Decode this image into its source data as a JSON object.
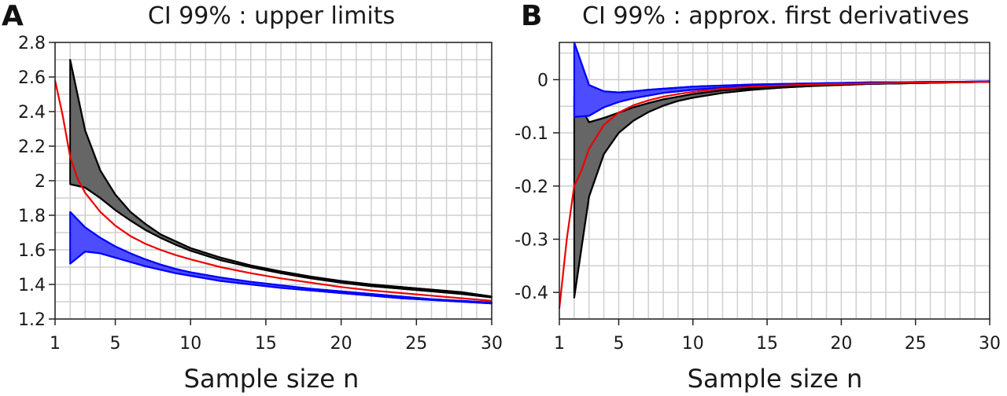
{
  "chart_data": [
    {
      "panel": "A",
      "type": "line",
      "title": "CI 99% :  upper limits",
      "xlabel": "Sample size n",
      "ylabel": "",
      "xlim": [
        1,
        30
      ],
      "ylim": [
        1.2,
        2.8
      ],
      "xticks": [
        1,
        5,
        10,
        15,
        20,
        25,
        30
      ],
      "yticks": [
        1.2,
        1.4,
        1.6,
        1.8,
        2,
        2.2,
        2.4,
        2.6,
        2.8
      ],
      "ytick_labels": [
        "1.2",
        "1.4",
        "1.6",
        "1.8",
        "2",
        "2.2",
        "2.4",
        "2.6",
        "2.8"
      ],
      "grid": true,
      "bands": [
        {
          "color": "#666666",
          "edge": "#000000",
          "x": [
            2,
            3,
            4,
            5,
            6,
            7,
            8,
            9,
            10,
            12,
            14,
            16,
            18,
            20,
            22,
            24,
            26,
            28,
            30
          ],
          "upper": [
            2.7,
            2.29,
            2.06,
            1.92,
            1.82,
            1.75,
            1.69,
            1.65,
            1.61,
            1.555,
            1.51,
            1.475,
            1.445,
            1.42,
            1.4,
            1.385,
            1.37,
            1.355,
            1.33
          ],
          "lower": [
            1.98,
            1.96,
            1.9,
            1.83,
            1.77,
            1.715,
            1.67,
            1.63,
            1.595,
            1.54,
            1.5,
            1.465,
            1.435,
            1.41,
            1.39,
            1.375,
            1.36,
            1.345,
            1.325
          ]
        },
        {
          "color": "#4d4dff",
          "edge": "#0000ff",
          "x": [
            2,
            3,
            4,
            5,
            6,
            7,
            8,
            9,
            10,
            12,
            14,
            16,
            18,
            20,
            22,
            24,
            26,
            28,
            30
          ],
          "upper": [
            1.82,
            1.73,
            1.67,
            1.62,
            1.58,
            1.545,
            1.515,
            1.49,
            1.47,
            1.44,
            1.415,
            1.395,
            1.375,
            1.36,
            1.345,
            1.33,
            1.315,
            1.305,
            1.295
          ],
          "lower": [
            1.52,
            1.59,
            1.58,
            1.555,
            1.53,
            1.505,
            1.485,
            1.465,
            1.45,
            1.42,
            1.4,
            1.38,
            1.365,
            1.35,
            1.335,
            1.32,
            1.31,
            1.3,
            1.29
          ]
        }
      ],
      "series": [
        {
          "color": "#ee0000",
          "x": [
            1,
            1.5,
            2,
            2.5,
            3,
            4,
            5,
            6,
            7,
            8,
            9,
            10,
            12,
            14,
            16,
            18,
            20,
            22,
            24,
            26,
            28,
            30
          ],
          "values": [
            2.58,
            2.38,
            2.14,
            2.01,
            1.93,
            1.82,
            1.74,
            1.68,
            1.635,
            1.6,
            1.57,
            1.545,
            1.5,
            1.465,
            1.435,
            1.41,
            1.385,
            1.365,
            1.35,
            1.335,
            1.32,
            1.305
          ]
        }
      ]
    },
    {
      "panel": "B",
      "type": "line",
      "title": "CI 99% :  approx. first derivatives",
      "xlabel": "Sample size n",
      "ylabel": "",
      "xlim": [
        1,
        30
      ],
      "ylim": [
        -0.45,
        0.07
      ],
      "xticks": [
        1,
        5,
        10,
        15,
        20,
        25,
        30
      ],
      "yticks": [
        -0.4,
        -0.3,
        -0.2,
        -0.1,
        0
      ],
      "ytick_labels": [
        "-0.4",
        "-0.3",
        "-0.2",
        "-0.1",
        "0"
      ],
      "grid": true,
      "bands": [
        {
          "color": "#666666",
          "edge": "#000000",
          "x": [
            2,
            3,
            4,
            5,
            6,
            7,
            8,
            9,
            10,
            12,
            14,
            16,
            18,
            20,
            22,
            24,
            26,
            28,
            30
          ],
          "upper": [
            -0.03,
            -0.08,
            -0.072,
            -0.062,
            -0.052,
            -0.044,
            -0.037,
            -0.032,
            -0.027,
            -0.02,
            -0.016,
            -0.013,
            -0.011,
            -0.009,
            -0.008,
            -0.007,
            -0.006,
            -0.005,
            -0.004
          ],
          "lower": [
            -0.41,
            -0.22,
            -0.14,
            -0.1,
            -0.077,
            -0.061,
            -0.049,
            -0.04,
            -0.034,
            -0.025,
            -0.019,
            -0.015,
            -0.012,
            -0.01,
            -0.008,
            -0.007,
            -0.006,
            -0.005,
            -0.004
          ]
        },
        {
          "color": "#4d4dff",
          "edge": "#0000ff",
          "x": [
            2,
            3,
            4,
            5,
            6,
            7,
            8,
            9,
            10,
            12,
            14,
            16,
            18,
            20,
            22,
            24,
            26,
            28,
            30
          ],
          "upper": [
            0.07,
            -0.01,
            -0.022,
            -0.024,
            -0.022,
            -0.019,
            -0.017,
            -0.015,
            -0.013,
            -0.011,
            -0.009,
            -0.008,
            -0.007,
            -0.006,
            -0.005,
            -0.005,
            -0.004,
            -0.004,
            -0.003
          ],
          "lower": [
            -0.07,
            -0.068,
            -0.052,
            -0.042,
            -0.035,
            -0.03,
            -0.025,
            -0.022,
            -0.019,
            -0.015,
            -0.012,
            -0.01,
            -0.009,
            -0.008,
            -0.007,
            -0.006,
            -0.005,
            -0.004,
            -0.004
          ]
        }
      ],
      "series": [
        {
          "color": "#ee0000",
          "x": [
            1,
            1.5,
            2,
            2.5,
            3,
            4,
            5,
            6,
            7,
            8,
            9,
            10,
            12,
            14,
            16,
            18,
            20,
            22,
            24,
            26,
            28,
            30
          ],
          "values": [
            -0.43,
            -0.3,
            -0.2,
            -0.17,
            -0.13,
            -0.085,
            -0.062,
            -0.048,
            -0.039,
            -0.032,
            -0.027,
            -0.023,
            -0.017,
            -0.013,
            -0.011,
            -0.009,
            -0.008,
            -0.007,
            -0.006,
            -0.005,
            -0.005,
            -0.004
          ]
        }
      ]
    }
  ]
}
